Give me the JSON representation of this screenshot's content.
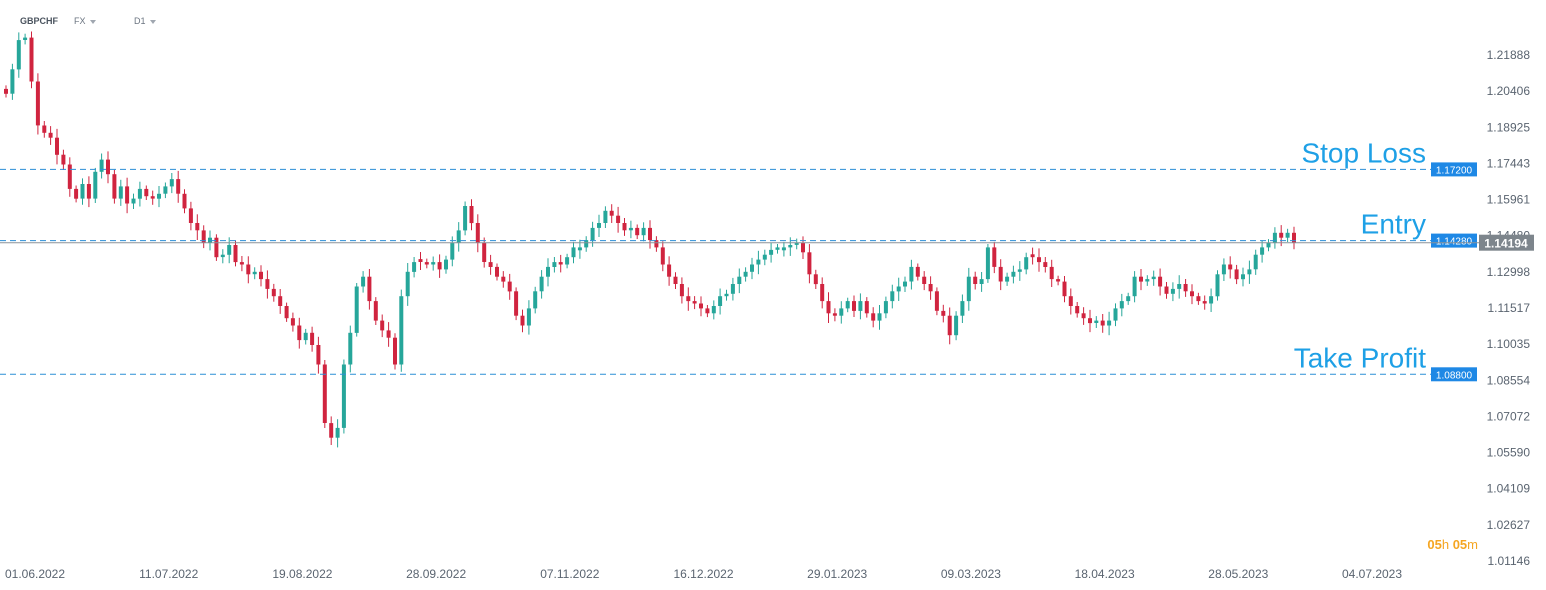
{
  "header": {
    "symbol": "GBPCHF",
    "market": "FX",
    "timeframe": "D1"
  },
  "timer": {
    "hours": "05",
    "hours_unit": "h",
    "minutes": "05",
    "minutes_unit": "m"
  },
  "colors": {
    "up": "#26a69a",
    "down": "#d0243f",
    "level_line": "#2c8fd6",
    "level_label_bg": "#1e88e5",
    "price_label_bg": "#7d858c",
    "annotation": "#1ea0e6",
    "axis_text": "#5a6470"
  },
  "chart_data": {
    "type": "candlestick",
    "symbol": "GBPCHF",
    "timeframe": "D1",
    "x_start": "01.06.2022",
    "x_end": "04.07.2023",
    "x_tick_labels": [
      "01.06.2022",
      "11.07.2022",
      "19.08.2022",
      "28.09.2022",
      "07.11.2022",
      "16.12.2022",
      "29.01.2023",
      "09.03.2023",
      "18.04.2023",
      "28.05.2023",
      "04.07.2023"
    ],
    "y_tick_labels": [
      "1.21888",
      "1.20406",
      "1.18925",
      "1.17443",
      "1.15961",
      "1.14480",
      "1.12998",
      "1.11517",
      "1.10035",
      "1.08554",
      "1.07072",
      "1.05590",
      "1.04109",
      "1.02627",
      "1.01146"
    ],
    "ylim": [
      1.01146,
      1.21888
    ],
    "levels": [
      {
        "name": "Stop Loss",
        "label": "Stop Loss",
        "price": "1.17200",
        "value": 1.172
      },
      {
        "name": "Entry",
        "label": "Entry",
        "price": "1.14280",
        "value": 1.1428
      },
      {
        "name": "Take Profit",
        "label": "Take Profit",
        "price": "1.08800",
        "value": 1.088
      }
    ],
    "current_price": {
      "label": "1.14194",
      "value": 1.14194
    },
    "closes": [
      [
        1.203,
        1.213,
        1.225,
        1.226,
        1.208,
        1.19,
        1.187,
        1.185,
        1.178,
        1.174,
        1.164,
        1.16,
        1.166,
        1.16,
        1.171,
        1.176,
        1.17,
        1.16,
        1.165,
        1.158,
        1.16,
        1.164,
        1.161,
        1.16,
        1.162,
        1.165,
        1.168,
        1.162,
        1.156,
        1.15,
        1.147,
        1.142,
        1.144,
        1.136,
        1.137,
        1.141,
        1.134,
        1.133,
        1.129,
        1.13,
        1.127,
        1.123,
        1.12,
        1.116,
        1.111,
        1.108,
        1.102,
        1.105,
        1.1,
        1.092,
        1.068,
        1.062,
        1.066,
        1.092,
        1.105,
        1.124,
        1.128,
        1.118,
        1.11,
        1.106,
        1.103,
        1.092,
        1.12,
        1.13,
        1.134,
        1.134,
        1.133,
        1.134,
        1.131,
        1.135,
        1.142,
        1.147,
        1.157,
        1.15
      ],
      [
        1.142,
        1.134,
        1.132,
        1.128,
        1.126,
        1.122,
        1.112,
        1.108,
        1.115,
        1.122,
        1.128,
        1.132,
        1.134,
        1.133,
        1.136,
        1.14,
        1.14,
        1.143,
        1.148,
        1.15,
        1.155,
        1.153,
        1.15,
        1.147,
        1.148,
        1.145,
        1.148,
        1.143,
        1.14,
        1.133,
        1.128,
        1.125,
        1.12,
        1.118,
        1.117,
        1.115,
        1.113,
        1.116,
        1.12,
        1.121,
        1.125,
        1.128,
        1.13,
        1.133,
        1.135,
        1.137,
        1.139,
        1.14,
        1.14,
        1.141,
        1.142,
        1.138,
        1.129,
        1.125,
        1.118,
        1.113,
        1.112,
        1.115,
        1.118,
        1.114,
        1.118,
        1.113,
        1.11,
        1.113,
        1.118,
        1.122,
        1.124,
        1.126,
        1.132,
        1.128,
        1.125,
        1.122
      ],
      [
        1.114,
        1.112,
        1.104,
        1.112,
        1.118,
        1.128,
        1.125,
        1.127,
        1.14,
        1.132,
        1.126,
        1.128,
        1.13,
        1.131,
        1.136,
        1.136,
        1.134,
        1.132,
        1.127,
        1.126,
        1.12,
        1.116,
        1.113,
        1.111,
        1.109,
        1.11,
        1.108,
        1.11,
        1.115,
        1.118,
        1.12,
        1.128,
        1.126,
        1.127,
        1.128,
        1.124,
        1.121,
        1.123,
        1.125,
        1.122,
        1.12,
        1.118,
        1.117,
        1.12,
        1.129,
        1.133,
        1.131,
        1.127,
        1.129,
        1.131,
        1.137,
        1.14,
        1.142,
        1.146,
        1.144,
        1.146,
        1.142
      ]
    ]
  }
}
